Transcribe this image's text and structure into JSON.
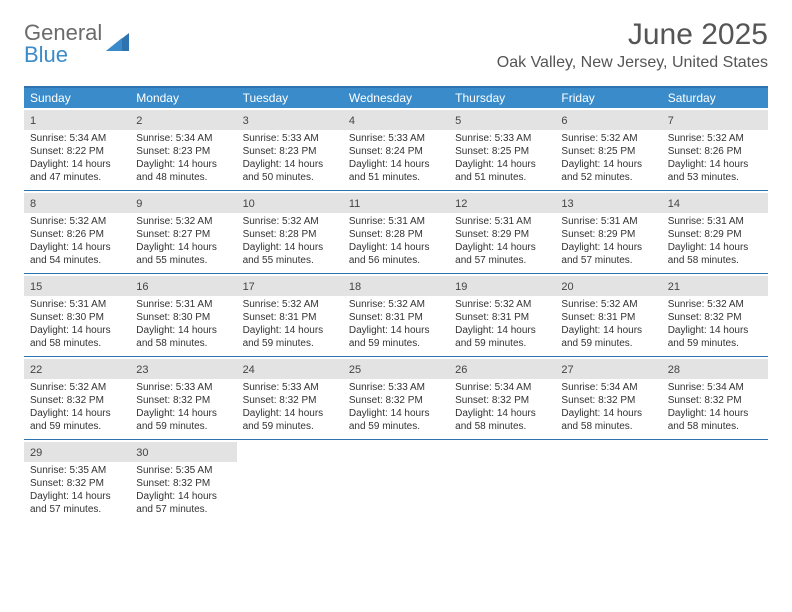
{
  "logo": {
    "word1": "General",
    "word2": "Blue"
  },
  "title": "June 2025",
  "location": "Oak Valley, New Jersey, United States",
  "colors": {
    "header_bg": "#3a8bc9",
    "border": "#2e72b0",
    "daynum_bg": "#e3e3e3",
    "text": "#333333",
    "logo_gray": "#6b6b6b"
  },
  "dow": [
    "Sunday",
    "Monday",
    "Tuesday",
    "Wednesday",
    "Thursday",
    "Friday",
    "Saturday"
  ],
  "weeks": [
    [
      {
        "n": "1",
        "sr": "Sunrise: 5:34 AM",
        "ss": "Sunset: 8:22 PM",
        "d1": "Daylight: 14 hours",
        "d2": "and 47 minutes."
      },
      {
        "n": "2",
        "sr": "Sunrise: 5:34 AM",
        "ss": "Sunset: 8:23 PM",
        "d1": "Daylight: 14 hours",
        "d2": "and 48 minutes."
      },
      {
        "n": "3",
        "sr": "Sunrise: 5:33 AM",
        "ss": "Sunset: 8:23 PM",
        "d1": "Daylight: 14 hours",
        "d2": "and 50 minutes."
      },
      {
        "n": "4",
        "sr": "Sunrise: 5:33 AM",
        "ss": "Sunset: 8:24 PM",
        "d1": "Daylight: 14 hours",
        "d2": "and 51 minutes."
      },
      {
        "n": "5",
        "sr": "Sunrise: 5:33 AM",
        "ss": "Sunset: 8:25 PM",
        "d1": "Daylight: 14 hours",
        "d2": "and 51 minutes."
      },
      {
        "n": "6",
        "sr": "Sunrise: 5:32 AM",
        "ss": "Sunset: 8:25 PM",
        "d1": "Daylight: 14 hours",
        "d2": "and 52 minutes."
      },
      {
        "n": "7",
        "sr": "Sunrise: 5:32 AM",
        "ss": "Sunset: 8:26 PM",
        "d1": "Daylight: 14 hours",
        "d2": "and 53 minutes."
      }
    ],
    [
      {
        "n": "8",
        "sr": "Sunrise: 5:32 AM",
        "ss": "Sunset: 8:26 PM",
        "d1": "Daylight: 14 hours",
        "d2": "and 54 minutes."
      },
      {
        "n": "9",
        "sr": "Sunrise: 5:32 AM",
        "ss": "Sunset: 8:27 PM",
        "d1": "Daylight: 14 hours",
        "d2": "and 55 minutes."
      },
      {
        "n": "10",
        "sr": "Sunrise: 5:32 AM",
        "ss": "Sunset: 8:28 PM",
        "d1": "Daylight: 14 hours",
        "d2": "and 55 minutes."
      },
      {
        "n": "11",
        "sr": "Sunrise: 5:31 AM",
        "ss": "Sunset: 8:28 PM",
        "d1": "Daylight: 14 hours",
        "d2": "and 56 minutes."
      },
      {
        "n": "12",
        "sr": "Sunrise: 5:31 AM",
        "ss": "Sunset: 8:29 PM",
        "d1": "Daylight: 14 hours",
        "d2": "and 57 minutes."
      },
      {
        "n": "13",
        "sr": "Sunrise: 5:31 AM",
        "ss": "Sunset: 8:29 PM",
        "d1": "Daylight: 14 hours",
        "d2": "and 57 minutes."
      },
      {
        "n": "14",
        "sr": "Sunrise: 5:31 AM",
        "ss": "Sunset: 8:29 PM",
        "d1": "Daylight: 14 hours",
        "d2": "and 58 minutes."
      }
    ],
    [
      {
        "n": "15",
        "sr": "Sunrise: 5:31 AM",
        "ss": "Sunset: 8:30 PM",
        "d1": "Daylight: 14 hours",
        "d2": "and 58 minutes."
      },
      {
        "n": "16",
        "sr": "Sunrise: 5:31 AM",
        "ss": "Sunset: 8:30 PM",
        "d1": "Daylight: 14 hours",
        "d2": "and 58 minutes."
      },
      {
        "n": "17",
        "sr": "Sunrise: 5:32 AM",
        "ss": "Sunset: 8:31 PM",
        "d1": "Daylight: 14 hours",
        "d2": "and 59 minutes."
      },
      {
        "n": "18",
        "sr": "Sunrise: 5:32 AM",
        "ss": "Sunset: 8:31 PM",
        "d1": "Daylight: 14 hours",
        "d2": "and 59 minutes."
      },
      {
        "n": "19",
        "sr": "Sunrise: 5:32 AM",
        "ss": "Sunset: 8:31 PM",
        "d1": "Daylight: 14 hours",
        "d2": "and 59 minutes."
      },
      {
        "n": "20",
        "sr": "Sunrise: 5:32 AM",
        "ss": "Sunset: 8:31 PM",
        "d1": "Daylight: 14 hours",
        "d2": "and 59 minutes."
      },
      {
        "n": "21",
        "sr": "Sunrise: 5:32 AM",
        "ss": "Sunset: 8:32 PM",
        "d1": "Daylight: 14 hours",
        "d2": "and 59 minutes."
      }
    ],
    [
      {
        "n": "22",
        "sr": "Sunrise: 5:32 AM",
        "ss": "Sunset: 8:32 PM",
        "d1": "Daylight: 14 hours",
        "d2": "and 59 minutes."
      },
      {
        "n": "23",
        "sr": "Sunrise: 5:33 AM",
        "ss": "Sunset: 8:32 PM",
        "d1": "Daylight: 14 hours",
        "d2": "and 59 minutes."
      },
      {
        "n": "24",
        "sr": "Sunrise: 5:33 AM",
        "ss": "Sunset: 8:32 PM",
        "d1": "Daylight: 14 hours",
        "d2": "and 59 minutes."
      },
      {
        "n": "25",
        "sr": "Sunrise: 5:33 AM",
        "ss": "Sunset: 8:32 PM",
        "d1": "Daylight: 14 hours",
        "d2": "and 59 minutes."
      },
      {
        "n": "26",
        "sr": "Sunrise: 5:34 AM",
        "ss": "Sunset: 8:32 PM",
        "d1": "Daylight: 14 hours",
        "d2": "and 58 minutes."
      },
      {
        "n": "27",
        "sr": "Sunrise: 5:34 AM",
        "ss": "Sunset: 8:32 PM",
        "d1": "Daylight: 14 hours",
        "d2": "and 58 minutes."
      },
      {
        "n": "28",
        "sr": "Sunrise: 5:34 AM",
        "ss": "Sunset: 8:32 PM",
        "d1": "Daylight: 14 hours",
        "d2": "and 58 minutes."
      }
    ],
    [
      {
        "n": "29",
        "sr": "Sunrise: 5:35 AM",
        "ss": "Sunset: 8:32 PM",
        "d1": "Daylight: 14 hours",
        "d2": "and 57 minutes."
      },
      {
        "n": "30",
        "sr": "Sunrise: 5:35 AM",
        "ss": "Sunset: 8:32 PM",
        "d1": "Daylight: 14 hours",
        "d2": "and 57 minutes."
      },
      null,
      null,
      null,
      null,
      null
    ]
  ]
}
